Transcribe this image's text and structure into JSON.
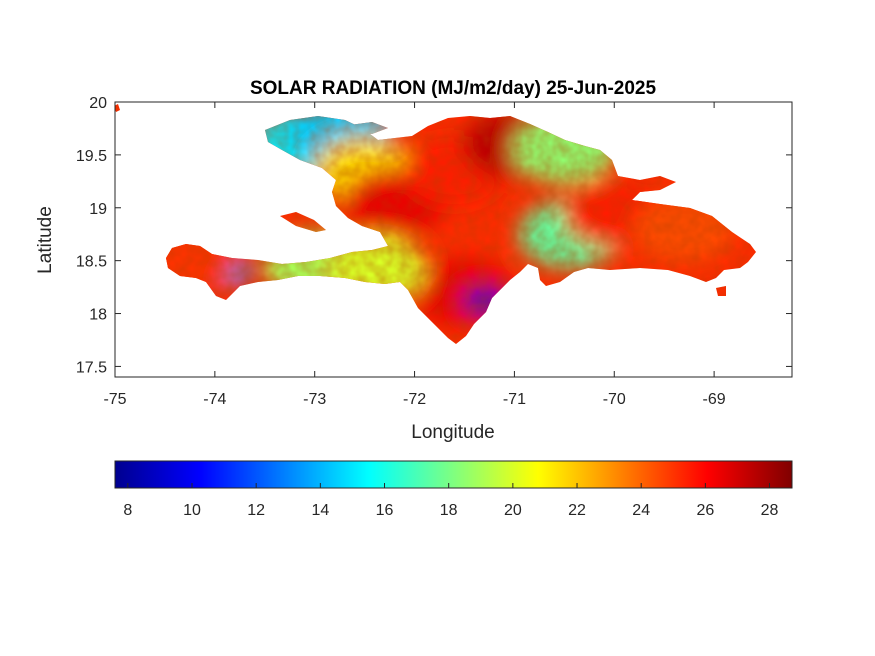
{
  "chart_data": {
    "type": "heatmap",
    "title": "SOLAR RADIATION (MJ/m2/day) 25-Jun-2025",
    "xlabel": "Longitude",
    "ylabel": "Latitude",
    "xlim": [
      -75,
      -68.22
    ],
    "ylim": [
      17.4,
      20
    ],
    "x_ticks": [
      "-75",
      "-74",
      "-73",
      "-72",
      "-71",
      "-70",
      "-69"
    ],
    "y_ticks": [
      "17.5",
      "18",
      "18.5",
      "19",
      "19.5",
      "20"
    ],
    "x_tick_values": [
      -75,
      -74,
      -73,
      -72,
      -71,
      -70,
      -69
    ],
    "y_tick_values": [
      17.5,
      18,
      18.5,
      19,
      19.5,
      20
    ],
    "grid": false,
    "colormap": "jet",
    "colorbar": {
      "orientation": "horizontal",
      "range": [
        7.6,
        28.7
      ],
      "ticks": [
        "8",
        "10",
        "12",
        "14",
        "16",
        "18",
        "20",
        "22",
        "24",
        "26",
        "28"
      ],
      "tick_values": [
        8,
        10,
        12,
        14,
        16,
        18,
        20,
        22,
        24,
        26,
        28
      ]
    },
    "regions": [
      {
        "lon": -73.1,
        "lat": 19.62,
        "value": 15.2
      },
      {
        "lon": -72.75,
        "lat": 19.7,
        "value": 14.5
      },
      {
        "lon": -72.5,
        "lat": 19.35,
        "value": 21.5
      },
      {
        "lon": -72.2,
        "lat": 19.05,
        "value": 26.5
      },
      {
        "lon": -71.6,
        "lat": 19.35,
        "value": 25.5
      },
      {
        "lon": -71.0,
        "lat": 19.6,
        "value": 27.5
      },
      {
        "lon": -70.5,
        "lat": 19.55,
        "value": 18.5
      },
      {
        "lon": -70.45,
        "lat": 18.75,
        "value": 17.5
      },
      {
        "lon": -70.0,
        "lat": 18.95,
        "value": 25.5
      },
      {
        "lon": -69.3,
        "lat": 18.8,
        "value": 24.5
      },
      {
        "lon": -71.5,
        "lat": 18.2,
        "value": 26.5
      },
      {
        "lon": -71.3,
        "lat": 18.12,
        "value": 9.0
      },
      {
        "lon": -73.85,
        "lat": 18.4,
        "value": 13.0
      },
      {
        "lon": -73.0,
        "lat": 18.45,
        "value": 19.0
      },
      {
        "lon": -72.4,
        "lat": 18.42,
        "value": 20.0
      },
      {
        "lon": -74.3,
        "lat": 18.5,
        "value": 25.0
      }
    ]
  }
}
